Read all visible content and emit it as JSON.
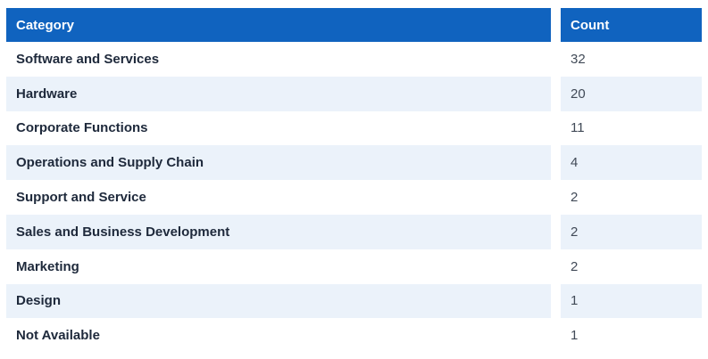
{
  "table": {
    "columns": [
      {
        "key": "category",
        "label": "Category"
      },
      {
        "key": "count",
        "label": "Count"
      }
    ],
    "rows": [
      {
        "category": "Software and Services",
        "count": "32"
      },
      {
        "category": "Hardware",
        "count": "20"
      },
      {
        "category": "Corporate Functions",
        "count": "11"
      },
      {
        "category": "Operations and Supply Chain",
        "count": "4"
      },
      {
        "category": "Support and Service",
        "count": "2"
      },
      {
        "category": "Sales and Business Development",
        "count": "2"
      },
      {
        "category": "Marketing",
        "count": "2"
      },
      {
        "category": "Design",
        "count": "1"
      },
      {
        "category": "Not Available",
        "count": "1"
      }
    ]
  },
  "chart_data": {
    "type": "table",
    "columns": [
      "Category",
      "Count"
    ],
    "categories": [
      "Software and Services",
      "Hardware",
      "Corporate Functions",
      "Operations and Supply Chain",
      "Support and Service",
      "Sales and Business Development",
      "Marketing",
      "Design",
      "Not Available"
    ],
    "values": [
      32,
      20,
      11,
      4,
      2,
      2,
      2,
      1,
      1
    ],
    "title": "",
    "layout": {
      "striped": true,
      "header_position": "top"
    }
  },
  "colors": {
    "header_bg": "#1063BF",
    "header_text": "#FFFFFF",
    "stripe_bg": "#EBF2FA",
    "row_bg": "#FFFFFF",
    "category_text": "#1E293B",
    "count_text": "#414A57"
  }
}
